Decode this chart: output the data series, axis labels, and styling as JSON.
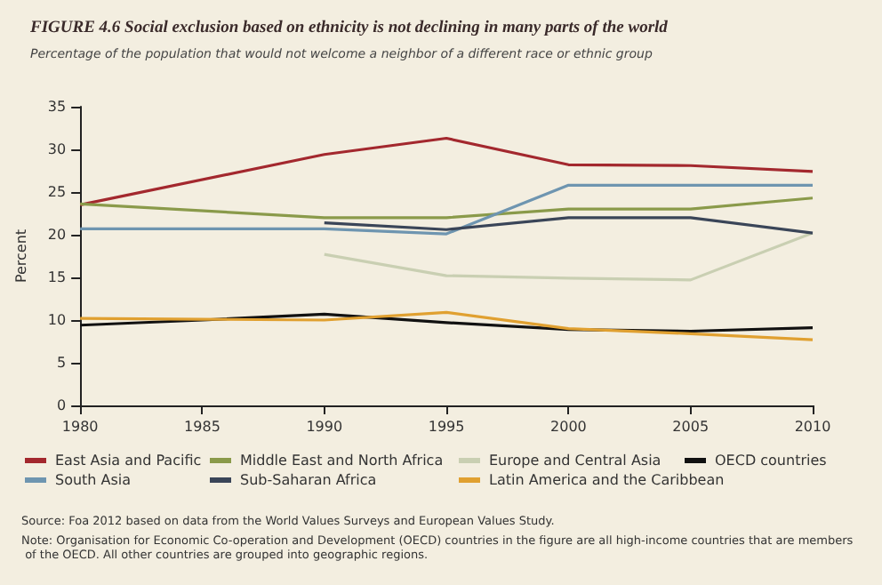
{
  "chart_data": {
    "type": "line",
    "title": "FIGURE 4.6 Social exclusion based on ethnicity is not declining in many parts of the world",
    "subtitle": "Percentage of the population that would not welcome a neighbor of a different race or ethnic group",
    "ylabel": "Percent",
    "x": [
      1980,
      1985,
      1990,
      1995,
      2000,
      2005,
      2010
    ],
    "series": [
      {
        "name": "East Asia and Pacific",
        "color": "#a3282e",
        "values": [
          23.5,
          null,
          29.4,
          31.3,
          28.2,
          28.1,
          27.4
        ]
      },
      {
        "name": "Middle East and North Africa",
        "color": "#8a9a4a",
        "values": [
          23.6,
          null,
          22.0,
          22.0,
          23.0,
          23.0,
          24.3
        ]
      },
      {
        "name": "Europe and Central Asia",
        "color": "#c9cfb2",
        "values": [
          null,
          null,
          17.7,
          15.2,
          14.9,
          14.7,
          20.2
        ]
      },
      {
        "name": "OECD countries",
        "color": "#111111",
        "values": [
          9.4,
          10.0,
          10.7,
          9.7,
          8.9,
          8.7,
          9.1
        ]
      },
      {
        "name": "South Asia",
        "color": "#6e95b0",
        "values": [
          20.7,
          null,
          20.7,
          20.1,
          25.8,
          25.8,
          25.8
        ]
      },
      {
        "name": "Sub-Saharan Africa",
        "color": "#3a4558",
        "values": [
          null,
          null,
          21.4,
          20.6,
          22.0,
          22.0,
          20.2
        ]
      },
      {
        "name": "Latin America and the Caribbean",
        "color": "#e0a030",
        "values": [
          10.2,
          10.1,
          10.0,
          10.9,
          9.0,
          8.4,
          7.7
        ]
      }
    ],
    "xlim": [
      1980,
      2010
    ],
    "xticks": [
      1980,
      1985,
      1990,
      1995,
      2000,
      2005,
      2010
    ],
    "ylim": [
      0,
      35
    ],
    "yticks": [
      0,
      5,
      10,
      15,
      20,
      25,
      30,
      35
    ],
    "grid": false,
    "legend": "bottom",
    "marker": "none",
    "line_style": "solid",
    "annotations": [
      "Source: Foa 2012 based on data from the World Values Surveys and European Values Study.",
      "Note: Organisation for Economic Co-operation and Development (OECD) countries in the figure are all high-income countries that are members of the OECD. All other countries are grouped into geographic regions."
    ]
  }
}
